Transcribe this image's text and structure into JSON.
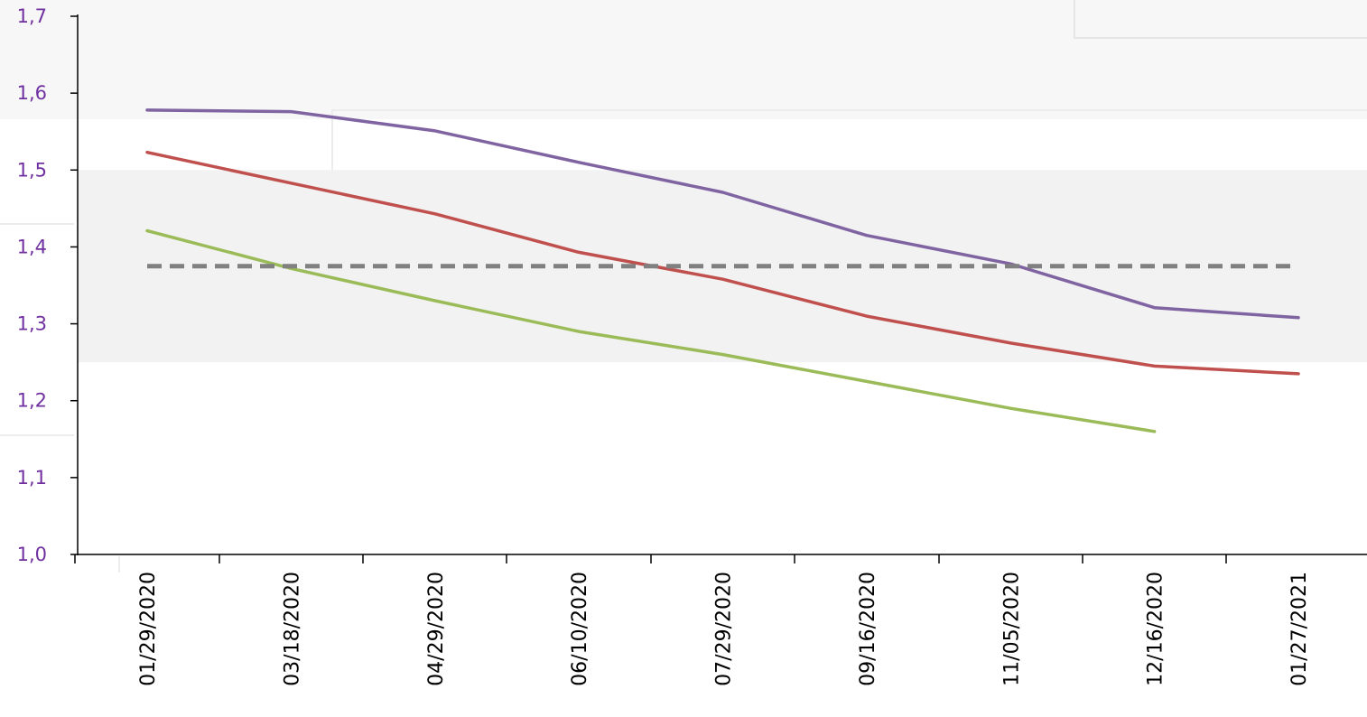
{
  "chart_data": {
    "type": "line",
    "title": "",
    "xlabel": "",
    "ylabel": "",
    "ylim": [
      1.0,
      1.7
    ],
    "yticks": [
      "1,0",
      "1,1",
      "1,2",
      "1,3",
      "1,4",
      "1,5",
      "1,6",
      "1,7"
    ],
    "categories": [
      "01/29/2020",
      "03/18/2020",
      "04/29/2020",
      "06/10/2020",
      "07/29/2020",
      "09/16/2020",
      "11/05/2020",
      "12/16/2020",
      "01/27/2021"
    ],
    "band": [
      1.25,
      1.5
    ],
    "series": [
      {
        "color": "#8064A2",
        "style": "solid",
        "values": [
          1.578,
          1.576,
          1.551,
          1.51,
          1.471,
          1.415,
          1.378,
          1.321,
          1.308
        ]
      },
      {
        "color": "#C0504D",
        "style": "solid",
        "values": [
          1.523,
          1.483,
          1.443,
          1.393,
          1.358,
          1.31,
          1.275,
          1.245,
          1.235
        ]
      },
      {
        "color": "#9BBB59",
        "style": "solid",
        "values": [
          1.421,
          1.372,
          1.33,
          1.29,
          1.26,
          1.225,
          1.19,
          1.16,
          null
        ]
      },
      {
        "color": "#808080",
        "style": "dashed",
        "values": [
          1.375,
          1.375,
          1.375,
          1.375,
          1.375,
          1.375,
          1.375,
          1.375,
          1.375
        ]
      }
    ],
    "ytick_color": "#7030A0",
    "legend": "none",
    "grid": false
  }
}
